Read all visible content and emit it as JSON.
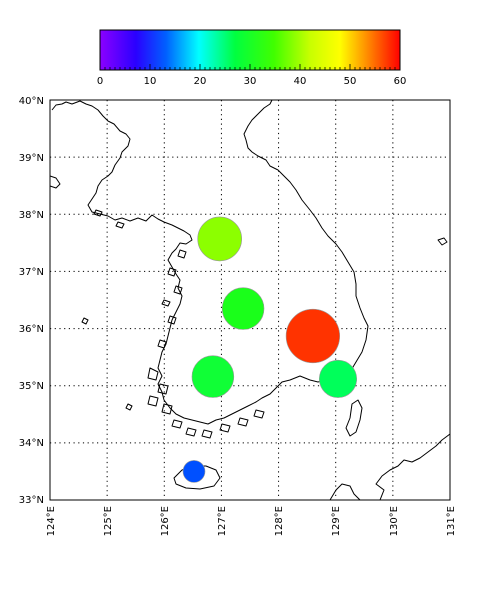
{
  "colorbar": {
    "min": 0,
    "max": 60,
    "tick_labels": [
      "0",
      "10",
      "20",
      "30",
      "40",
      "50",
      "60"
    ],
    "colormap": "gist_rainbow_r"
  },
  "map": {
    "lon_range": [
      124,
      131
    ],
    "lat_range": [
      33,
      40
    ],
    "x_tick_labels": [
      "124°E",
      "125°E",
      "126°E",
      "127°E",
      "128°E",
      "129°E",
      "130°E",
      "131°E"
    ],
    "y_tick_labels": [
      "33°N",
      "34°N",
      "35°N",
      "36°N",
      "37°N",
      "38°N",
      "39°N",
      "40°N"
    ],
    "grid": "dotted",
    "land_color": "#ffffff",
    "coastline_color": "#000000"
  },
  "stations": [
    {
      "lon": 126.97,
      "lat": 37.57,
      "value": 42,
      "color": "#8cff00",
      "radius_scale": 1.0
    },
    {
      "lon": 127.38,
      "lat": 36.35,
      "value": 33,
      "color": "#1aff1a",
      "radius_scale": 0.95
    },
    {
      "lon": 128.6,
      "lat": 35.87,
      "value": 58,
      "color": "#ff3300",
      "radius_scale": 1.22
    },
    {
      "lon": 126.85,
      "lat": 35.16,
      "value": 33,
      "color": "#10ff36",
      "radius_scale": 0.95
    },
    {
      "lon": 129.04,
      "lat": 35.12,
      "value": 30,
      "color": "#00ff5a",
      "radius_scale": 0.85
    },
    {
      "lon": 126.52,
      "lat": 33.5,
      "value": 12,
      "color": "#0050ff",
      "radius_scale": 0.5
    }
  ]
}
